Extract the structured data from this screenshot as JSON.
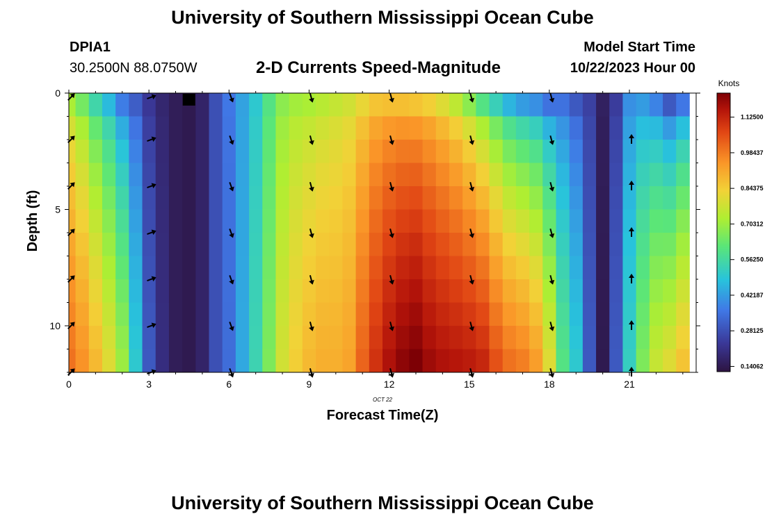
{
  "header": {
    "title": "University of Southern Mississippi Ocean Cube",
    "station_id": "DPIA1",
    "station_coords": "30.2500N  88.0750W",
    "chart_title": "2-D Currents Speed-Magnitude",
    "model_label": "Model Start Time",
    "model_time": "10/22/2023 Hour 00"
  },
  "footer": {
    "title": "University of Southern Mississippi Ocean Cube"
  },
  "chart_data": {
    "type": "heatmap",
    "title": "2-D Currents Speed-Magnitude",
    "xlabel": "Forecast Time(Z)",
    "ylabel": "Depth (ft)",
    "date_label": "OCT 22",
    "xlim": [
      0,
      23.5
    ],
    "ylim": [
      12,
      0
    ],
    "xticks": [
      0,
      3,
      6,
      9,
      12,
      15,
      18,
      21
    ],
    "yticks": [
      0,
      5,
      10
    ],
    "colorbar": {
      "label": "Knots",
      "range": [
        0.12,
        1.22
      ],
      "ticks": [
        "1.12500",
        "0.98437",
        "0.84375",
        "0.70312",
        "0.56250",
        "0.42187",
        "0.28125",
        "0.14062"
      ],
      "tick_values": [
        1.125,
        0.984375,
        0.84375,
        0.703125,
        0.5625,
        0.421875,
        0.28125,
        0.140625
      ]
    },
    "time_hours": [
      0,
      0.5,
      1,
      1.5,
      2,
      2.5,
      3,
      3.5,
      4,
      4.5,
      5,
      5.5,
      6,
      6.5,
      7,
      7.5,
      8,
      8.5,
      9,
      9.5,
      10,
      10.5,
      11,
      11.5,
      12,
      12.5,
      13,
      13.5,
      14,
      14.5,
      15,
      15.5,
      16,
      16.5,
      17,
      17.5,
      18,
      18.5,
      19,
      19.5,
      20,
      20.5,
      21,
      21.5,
      22,
      22.5,
      23
    ],
    "depth_ft": [
      0.5,
      1.5,
      2.5,
      3.5,
      4.5,
      5.5,
      6.5,
      7.5,
      8.5,
      9.5,
      10.5,
      11.5
    ],
    "speed_profile": {
      "top_surface_knots": [
        0.72,
        0.65,
        0.55,
        0.47,
        0.37,
        0.31,
        0.23,
        0.18,
        0.15,
        0.14,
        0.17,
        0.28,
        0.36,
        0.43,
        0.5,
        0.6,
        0.68,
        0.71,
        0.72,
        0.74,
        0.76,
        0.78,
        0.82,
        0.86,
        0.87,
        0.87,
        0.86,
        0.84,
        0.8,
        0.75,
        0.68,
        0.6,
        0.53,
        0.46,
        0.42,
        0.4,
        0.35,
        0.35,
        0.3,
        0.25,
        0.16,
        0.24,
        0.4,
        0.42,
        0.38,
        0.3,
        0.36
      ],
      "bottom_knots": [
        1.0,
        0.95,
        0.88,
        0.8,
        0.7,
        0.5,
        0.3,
        0.2,
        0.15,
        0.14,
        0.17,
        0.28,
        0.34,
        0.44,
        0.54,
        0.66,
        0.78,
        0.84,
        0.88,
        0.9,
        0.9,
        0.92,
        1.02,
        1.1,
        1.16,
        1.2,
        1.22,
        1.18,
        1.16,
        1.15,
        1.14,
        1.12,
        1.05,
        1.0,
        0.98,
        0.93,
        0.8,
        0.6,
        0.5,
        0.3,
        0.14,
        0.3,
        0.52,
        0.66,
        0.76,
        0.8,
        0.86
      ]
    },
    "vectors": {
      "times": [
        0,
        3,
        6,
        9,
        12,
        15,
        18,
        21
      ],
      "depths_ft": [
        0,
        2,
        4,
        6,
        8,
        10,
        12
      ],
      "directions_deg": [
        45,
        70,
        160,
        165,
        165,
        165,
        165,
        0
      ]
    },
    "missing_cell": {
      "time": 4.5,
      "depth": 0.25
    }
  }
}
